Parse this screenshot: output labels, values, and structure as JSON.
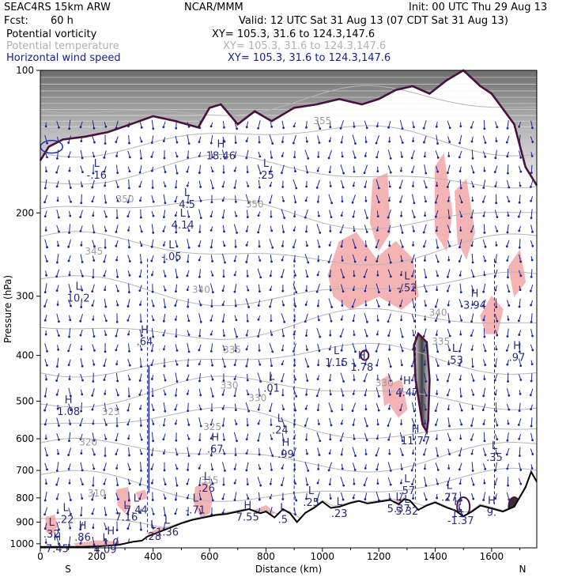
{
  "header": {
    "model": "SEAC4RS 15km ARW",
    "org": "NCAR/MMM",
    "init": "Init: 00 UTC Thu 29 Aug 13",
    "fcst_label": "Fcst:",
    "fcst_value": "60 h",
    "valid": "Valid: 12 UTC Sat 31 Aug 13 (07 CDT Sat 31 Aug 13)",
    "fields": [
      {
        "name": "Potential vorticity",
        "xy": "XY= 105.3, 31.6 to 124.3,147.6"
      },
      {
        "name": "Potential temperature",
        "xy": "XY= 105.3, 31.6 to 124.3,147.6"
      },
      {
        "name": "Horizontal wind speed",
        "xy": "XY= 105.3, 31.6 to 124.3,147.6"
      }
    ]
  },
  "colors": {
    "pv_contour": "#4a1040",
    "theta_contour": "#b5b5b5",
    "wind_vectors": "#1a2a9a",
    "pv_shade": "#f4b4b4",
    "terrain": "#000000"
  },
  "chart_data": {
    "type": "vertical cross-section",
    "xlabel": "Distance (km)",
    "ylabel": "Pressure (hPa)",
    "xlim": [
      0,
      1760
    ],
    "ylim": [
      1020,
      100
    ],
    "y_scale": "log",
    "x_ticks": [
      0,
      200,
      400,
      600,
      800,
      1000,
      1200,
      1400,
      1600
    ],
    "y_ticks": [
      100,
      200,
      300,
      400,
      500,
      600,
      700,
      800,
      900,
      1000
    ],
    "x_end_labels": {
      "left": "S",
      "right": "N"
    },
    "theta_labels": [
      {
        "value": "355",
        "x": 1000,
        "p": 130
      },
      {
        "value": "350",
        "x": 300,
        "p": 190
      },
      {
        "value": "350",
        "x": 760,
        "p": 195
      },
      {
        "value": "345",
        "x": 190,
        "p": 245
      },
      {
        "value": "340",
        "x": 570,
        "p": 295
      },
      {
        "value": "340",
        "x": 1410,
        "p": 330
      },
      {
        "value": "335",
        "x": 680,
        "p": 395
      },
      {
        "value": "335",
        "x": 1420,
        "p": 380
      },
      {
        "value": "330",
        "x": 670,
        "p": 470
      },
      {
        "value": "330",
        "x": 770,
        "p": 500
      },
      {
        "value": "330",
        "x": 1220,
        "p": 465
      },
      {
        "value": "325",
        "x": 250,
        "p": 535
      },
      {
        "value": "325",
        "x": 610,
        "p": 575
      },
      {
        "value": "320",
        "x": 170,
        "p": 620
      },
      {
        "value": "315",
        "x": 600,
        "p": 745
      },
      {
        "value": "310",
        "x": 200,
        "p": 795
      }
    ],
    "extrema": [
      {
        "kind": "L",
        "value": "-.16",
        "x": 200,
        "p": 165
      },
      {
        "kind": "H",
        "value": "18.46",
        "x": 640,
        "p": 150
      },
      {
        "kind": "L",
        "value": ".25",
        "x": 800,
        "p": 165
      },
      {
        "kind": "L",
        "value": "4.5",
        "x": 520,
        "p": 190
      },
      {
        "kind": "L",
        "value": "4.14",
        "x": 505,
        "p": 210
      },
      {
        "kind": "L",
        "value": "-.05",
        "x": 465,
        "p": 245
      },
      {
        "kind": "L",
        "value": "10.2",
        "x": 135,
        "p": 300
      },
      {
        "kind": "L",
        "value": "-.52",
        "x": 1300,
        "p": 285
      },
      {
        "kind": "H",
        "value": "3.94",
        "x": 1540,
        "p": 310
      },
      {
        "kind": "H",
        "value": ".64",
        "x": 370,
        "p": 370
      },
      {
        "kind": "L",
        "value": "1.15",
        "x": 1050,
        "p": 410
      },
      {
        "kind": "H",
        "value": "1.78",
        "x": 1140,
        "p": 420
      },
      {
        "kind": "L",
        "value": ".53",
        "x": 1470,
        "p": 405
      },
      {
        "kind": "H",
        "value": ".97",
        "x": 1690,
        "p": 400
      },
      {
        "kind": "L",
        "value": ".01",
        "x": 820,
        "p": 465
      },
      {
        "kind": "H",
        "value": "4.47",
        "x": 1300,
        "p": 475
      },
      {
        "kind": "H",
        "value": "1.08",
        "x": 100,
        "p": 520
      },
      {
        "kind": "L",
        "value": ".24",
        "x": 850,
        "p": 570
      },
      {
        "kind": "H",
        "value": "11.77",
        "x": 1330,
        "p": 600
      },
      {
        "kind": "H",
        "value": ".67",
        "x": 620,
        "p": 625
      },
      {
        "kind": "H",
        "value": ".99",
        "x": 870,
        "p": 640
      },
      {
        "kind": "L",
        "value": ".35",
        "x": 1610,
        "p": 650
      },
      {
        "kind": "L",
        "value": ".26",
        "x": 590,
        "p": 755
      },
      {
        "kind": "L",
        "value": ".57",
        "x": 1300,
        "p": 765
      },
      {
        "kind": "L",
        "value": ".27",
        "x": 1450,
        "p": 790
      },
      {
        "kind": "L",
        "value": ".25",
        "x": 960,
        "p": 810
      },
      {
        "kind": "L",
        "value": "7.44",
        "x": 340,
        "p": 840
      },
      {
        "kind": "L",
        "value": "7.16",
        "x": 305,
        "p": 870
      },
      {
        "kind": "L",
        "value": "-.71",
        "x": 550,
        "p": 840
      },
      {
        "kind": "H",
        "value": "7.55",
        "x": 735,
        "p": 870
      },
      {
        "kind": "L",
        "value": ".5",
        "x": 860,
        "p": 880
      },
      {
        "kind": "L",
        "value": ".23",
        "x": 1060,
        "p": 855
      },
      {
        "kind": "L",
        "value": "5.37",
        "x": 1270,
        "p": 835
      },
      {
        "kind": "L",
        "value": "5.32",
        "x": 1300,
        "p": 845
      },
      {
        "kind": "H",
        "value": "11",
        "x": 1480,
        "p": 855
      },
      {
        "kind": "H",
        "value": "9.",
        "x": 1600,
        "p": 850
      },
      {
        "kind": "L",
        "value": "-1.37",
        "x": 1490,
        "p": 885
      },
      {
        "kind": "L",
        "value": ".22",
        "x": 90,
        "p": 880
      },
      {
        "kind": "L",
        "value": ".32",
        "x": 40,
        "p": 945
      },
      {
        "kind": "H",
        "value": ".86",
        "x": 150,
        "p": 960
      },
      {
        "kind": "L",
        "value": "1.36",
        "x": 450,
        "p": 935
      },
      {
        "kind": "L",
        "value": ".28",
        "x": 400,
        "p": 955
      },
      {
        "kind": "H",
        "value": "1.0",
        "x": 250,
        "p": 985
      },
      {
        "kind": "H",
        "value": "7.45",
        "x": 60,
        "p": 1015
      },
      {
        "kind": "L",
        "value": "4.09",
        "x": 230,
        "p": 1025
      }
    ],
    "terrain": [
      [
        0,
        1015
      ],
      [
        150,
        1015
      ],
      [
        210,
        1012
      ],
      [
        280,
        1005
      ],
      [
        330,
        990
      ],
      [
        360,
        985
      ],
      [
        380,
        965
      ],
      [
        420,
        945
      ],
      [
        460,
        925
      ],
      [
        500,
        905
      ],
      [
        540,
        890
      ],
      [
        580,
        880
      ],
      [
        620,
        870
      ],
      [
        660,
        865
      ],
      [
        700,
        855
      ],
      [
        740,
        845
      ],
      [
        780,
        862
      ],
      [
        800,
        855
      ],
      [
        830,
        880
      ],
      [
        860,
        845
      ],
      [
        885,
        862
      ],
      [
        910,
        900
      ],
      [
        940,
        860
      ],
      [
        970,
        840
      ],
      [
        1000,
        815
      ],
      [
        1030,
        840
      ],
      [
        1060,
        835
      ],
      [
        1100,
        820
      ],
      [
        1130,
        812
      ],
      [
        1160,
        822
      ],
      [
        1200,
        815
      ],
      [
        1240,
        808
      ],
      [
        1270,
        825
      ],
      [
        1290,
        805
      ],
      [
        1310,
        810
      ],
      [
        1340,
        848
      ],
      [
        1370,
        830
      ],
      [
        1400,
        818
      ],
      [
        1440,
        838
      ],
      [
        1470,
        850
      ],
      [
        1500,
        875
      ],
      [
        1530,
        855
      ],
      [
        1560,
        830
      ],
      [
        1600,
        842
      ],
      [
        1640,
        855
      ],
      [
        1680,
        835
      ],
      [
        1720,
        760
      ],
      [
        1740,
        705
      ],
      [
        1760,
        740
      ]
    ],
    "pv_2pvu_contour": [
      [
        0,
        155
      ],
      [
        30,
        145
      ],
      [
        80,
        140
      ],
      [
        160,
        138
      ],
      [
        240,
        135
      ],
      [
        320,
        130
      ],
      [
        400,
        125
      ],
      [
        480,
        128
      ],
      [
        560,
        132
      ],
      [
        600,
        120
      ],
      [
        640,
        118
      ],
      [
        700,
        130
      ],
      [
        760,
        122
      ],
      [
        820,
        128
      ],
      [
        900,
        120
      ],
      [
        980,
        118
      ],
      [
        1060,
        115
      ],
      [
        1140,
        118
      ],
      [
        1200,
        115
      ],
      [
        1260,
        110
      ],
      [
        1320,
        108
      ],
      [
        1380,
        112
      ],
      [
        1440,
        105
      ],
      [
        1500,
        100
      ],
      [
        1560,
        108
      ],
      [
        1600,
        112
      ],
      [
        1680,
        130
      ],
      [
        1720,
        160
      ],
      [
        1760,
        175
      ]
    ],
    "shaded_pv_regions": [
      [
        [
          1020,
          270
        ],
        [
          1060,
          230
        ],
        [
          1120,
          220
        ],
        [
          1190,
          250
        ],
        [
          1260,
          230
        ],
        [
          1320,
          250
        ],
        [
          1340,
          300
        ],
        [
          1280,
          320
        ],
        [
          1200,
          300
        ],
        [
          1100,
          320
        ],
        [
          1040,
          300
        ]
      ],
      [
        [
          1180,
          170
        ],
        [
          1230,
          165
        ],
        [
          1240,
          220
        ],
        [
          1200,
          240
        ],
        [
          1170,
          210
        ]
      ],
      [
        [
          1400,
          160
        ],
        [
          1430,
          150
        ],
        [
          1460,
          200
        ],
        [
          1440,
          240
        ],
        [
          1400,
          220
        ]
      ],
      [
        [
          1470,
          180
        ],
        [
          1510,
          170
        ],
        [
          1540,
          220
        ],
        [
          1510,
          250
        ],
        [
          1480,
          230
        ]
      ],
      [
        [
          1560,
          330
        ],
        [
          1600,
          300
        ],
        [
          1640,
          320
        ],
        [
          1620,
          360
        ],
        [
          1580,
          360
        ]
      ],
      [
        [
          1660,
          260
        ],
        [
          1700,
          240
        ],
        [
          1720,
          280
        ],
        [
          1680,
          300
        ]
      ],
      [
        [
          1240,
          460
        ],
        [
          1280,
          450
        ],
        [
          1300,
          520
        ],
        [
          1270,
          540
        ],
        [
          1240,
          510
        ]
      ],
      [
        [
          1210,
          450
        ],
        [
          1240,
          440
        ],
        [
          1250,
          500
        ],
        [
          1220,
          510
        ]
      ],
      [
        [
          550,
          760
        ],
        [
          590,
          740
        ],
        [
          610,
          800
        ],
        [
          600,
          860
        ],
        [
          570,
          880
        ],
        [
          545,
          820
        ]
      ],
      [
        [
          270,
          770
        ],
        [
          310,
          760
        ],
        [
          320,
          820
        ],
        [
          300,
          860
        ],
        [
          275,
          830
        ]
      ],
      [
        [
          340,
          780
        ],
        [
          370,
          770
        ],
        [
          380,
          800
        ],
        [
          350,
          810
        ]
      ],
      [
        [
          20,
          880
        ],
        [
          50,
          870
        ],
        [
          60,
          920
        ],
        [
          40,
          960
        ],
        [
          20,
          940
        ]
      ],
      [
        [
          120,
          1000
        ],
        [
          200,
          985
        ],
        [
          260,
          990
        ],
        [
          300,
          1005
        ],
        [
          200,
          1012
        ],
        [
          130,
          1012
        ]
      ],
      [
        [
          380,
          950
        ],
        [
          440,
          920
        ],
        [
          470,
          930
        ],
        [
          430,
          960
        ],
        [
          390,
          970
        ]
      ],
      [
        [
          760,
          850
        ],
        [
          800,
          830
        ],
        [
          830,
          860
        ],
        [
          800,
          880
        ]
      ],
      [
        [
          1230,
          820
        ],
        [
          1290,
          800
        ],
        [
          1320,
          820
        ],
        [
          1280,
          850
        ],
        [
          1240,
          845
        ]
      ]
    ],
    "pv_max_tube": [
      [
        1340,
        360
      ],
      [
        1370,
        375
      ],
      [
        1380,
        450
      ],
      [
        1375,
        550
      ],
      [
        1370,
        580
      ],
      [
        1355,
        560
      ],
      [
        1330,
        450
      ],
      [
        1325,
        380
      ]
    ]
  }
}
